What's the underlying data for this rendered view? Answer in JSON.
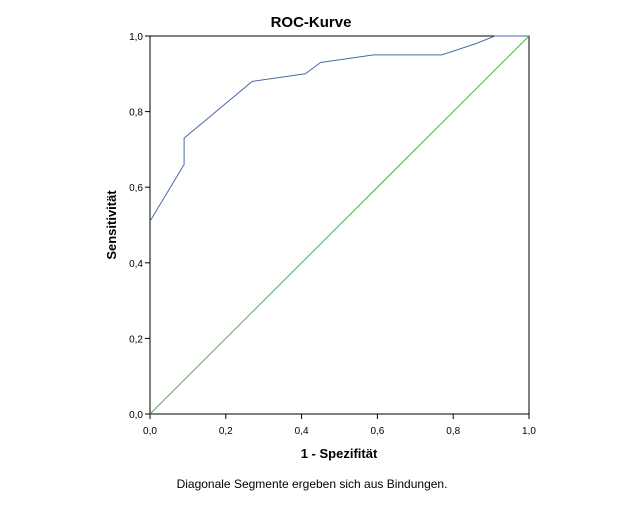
{
  "chart_data": {
    "type": "line",
    "title": "ROC-Kurve",
    "xlabel": "1 - Spezifität",
    "ylabel": "Sensitivität",
    "xlim": [
      0,
      1
    ],
    "ylim": [
      0,
      1
    ],
    "x_ticks": [
      "0,0",
      "0,2",
      "0,4",
      "0,6",
      "0,8",
      "1,0"
    ],
    "y_ticks": [
      "0,0",
      "0,2",
      "0,4",
      "0,6",
      "0,8",
      "1,0"
    ],
    "grid": false,
    "footnote": "Diagonale Segmente ergeben sich aus Bindungen.",
    "series": [
      {
        "color": "#4a6aa8",
        "points": [
          [
            0.0,
            0.51
          ],
          [
            0.09,
            0.66
          ],
          [
            0.09,
            0.73
          ],
          [
            0.27,
            0.88
          ],
          [
            0.41,
            0.9
          ],
          [
            0.45,
            0.93
          ],
          [
            0.59,
            0.95
          ],
          [
            0.77,
            0.95
          ],
          [
            0.86,
            0.98
          ],
          [
            0.91,
            1.0
          ],
          [
            1.0,
            1.0
          ]
        ]
      },
      {
        "color": "#4caf50",
        "points": [
          [
            0.0,
            0.0
          ],
          [
            1.0,
            1.0
          ]
        ]
      }
    ]
  }
}
